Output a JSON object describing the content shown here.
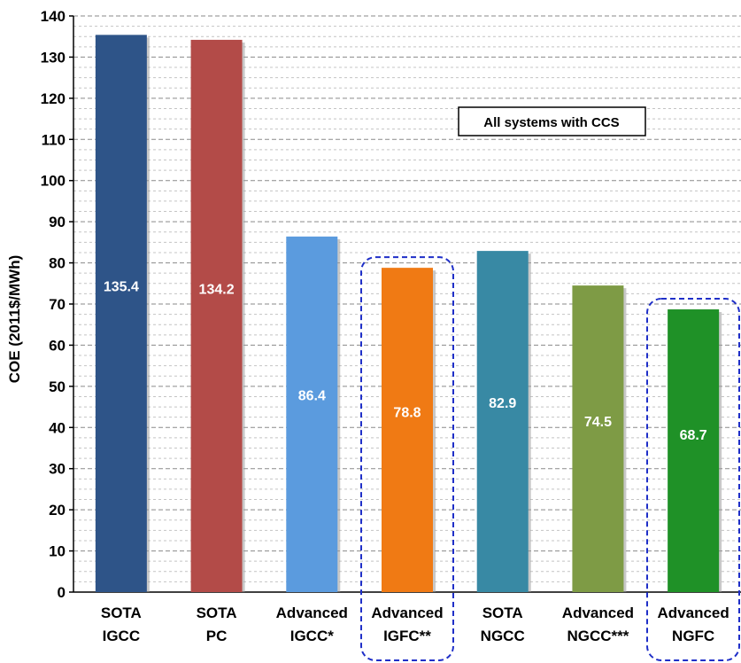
{
  "chart_data": {
    "type": "bar",
    "categories": [
      [
        "SOTA",
        "IGCC"
      ],
      [
        "SOTA",
        "PC"
      ],
      [
        "Advanced",
        "IGCC*"
      ],
      [
        "Advanced",
        "IGFC**"
      ],
      [
        "SOTA",
        "NGCC"
      ],
      [
        "Advanced",
        "NGCC***"
      ],
      [
        "Advanced",
        "NGFC"
      ]
    ],
    "values": [
      135.4,
      134.2,
      86.4,
      78.8,
      82.9,
      74.5,
      68.7
    ],
    "value_labels": [
      "135.4",
      "134.2",
      "86.4",
      "78.8",
      "82.9",
      "74.5",
      "68.7"
    ],
    "colors": [
      "#2E5488",
      "#B34B48",
      "#5B9BDE",
      "#F07A14",
      "#3889A4",
      "#7E9B45",
      "#1F9127"
    ],
    "highlighted_categories": [
      3,
      6
    ],
    "highlight_style": "blue dashed rounded outline",
    "ylabel": "COE (2011$/MWh)",
    "ylim": [
      0,
      140
    ],
    "yticks": [
      0,
      10,
      20,
      30,
      40,
      50,
      60,
      70,
      80,
      90,
      100,
      110,
      120,
      130,
      140
    ],
    "grid": "dashed horizontal",
    "annotation": "All systems with CCS",
    "title": "",
    "xlabel": ""
  }
}
